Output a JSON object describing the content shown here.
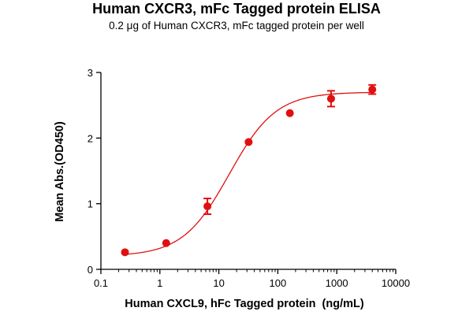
{
  "chart_data": {
    "type": "scatter",
    "title": "Human CXCR3, mFc Tagged protein ELISA",
    "subtitle": "0.2 μg of Human CXCR3, mFc tagged protein per well",
    "xlabel": "Human CXCL9, hFc Tagged protein  (ng/mL)",
    "ylabel": "Mean Abs.(OD450)",
    "x_scale": "log",
    "xlim": [
      0.1,
      10000
    ],
    "ylim": [
      0,
      3
    ],
    "x_ticks": [
      0.1,
      1,
      10,
      100,
      1000,
      10000
    ],
    "x_tick_labels": [
      "0.1",
      "1",
      "10",
      "100",
      "1000",
      "10000"
    ],
    "y_ticks": [
      0,
      1,
      2,
      3
    ],
    "y_tick_labels": [
      "0",
      "1",
      "2",
      "3"
    ],
    "grid": false,
    "color": "#e01010",
    "points": [
      {
        "x": 0.256,
        "y": 0.26,
        "err": 0.02
      },
      {
        "x": 1.28,
        "y": 0.4,
        "err": 0.02
      },
      {
        "x": 6.4,
        "y": 0.96,
        "err": 0.12
      },
      {
        "x": 32,
        "y": 1.94,
        "err": 0.02
      },
      {
        "x": 160,
        "y": 2.38,
        "err": 0.02
      },
      {
        "x": 800,
        "y": 2.6,
        "err": 0.12
      },
      {
        "x": 4000,
        "y": 2.74,
        "err": 0.07
      }
    ],
    "fit": {
      "model": "4PL",
      "bottom": 0.2,
      "top": 2.7,
      "ec50": 15,
      "hill": 1.1
    }
  }
}
